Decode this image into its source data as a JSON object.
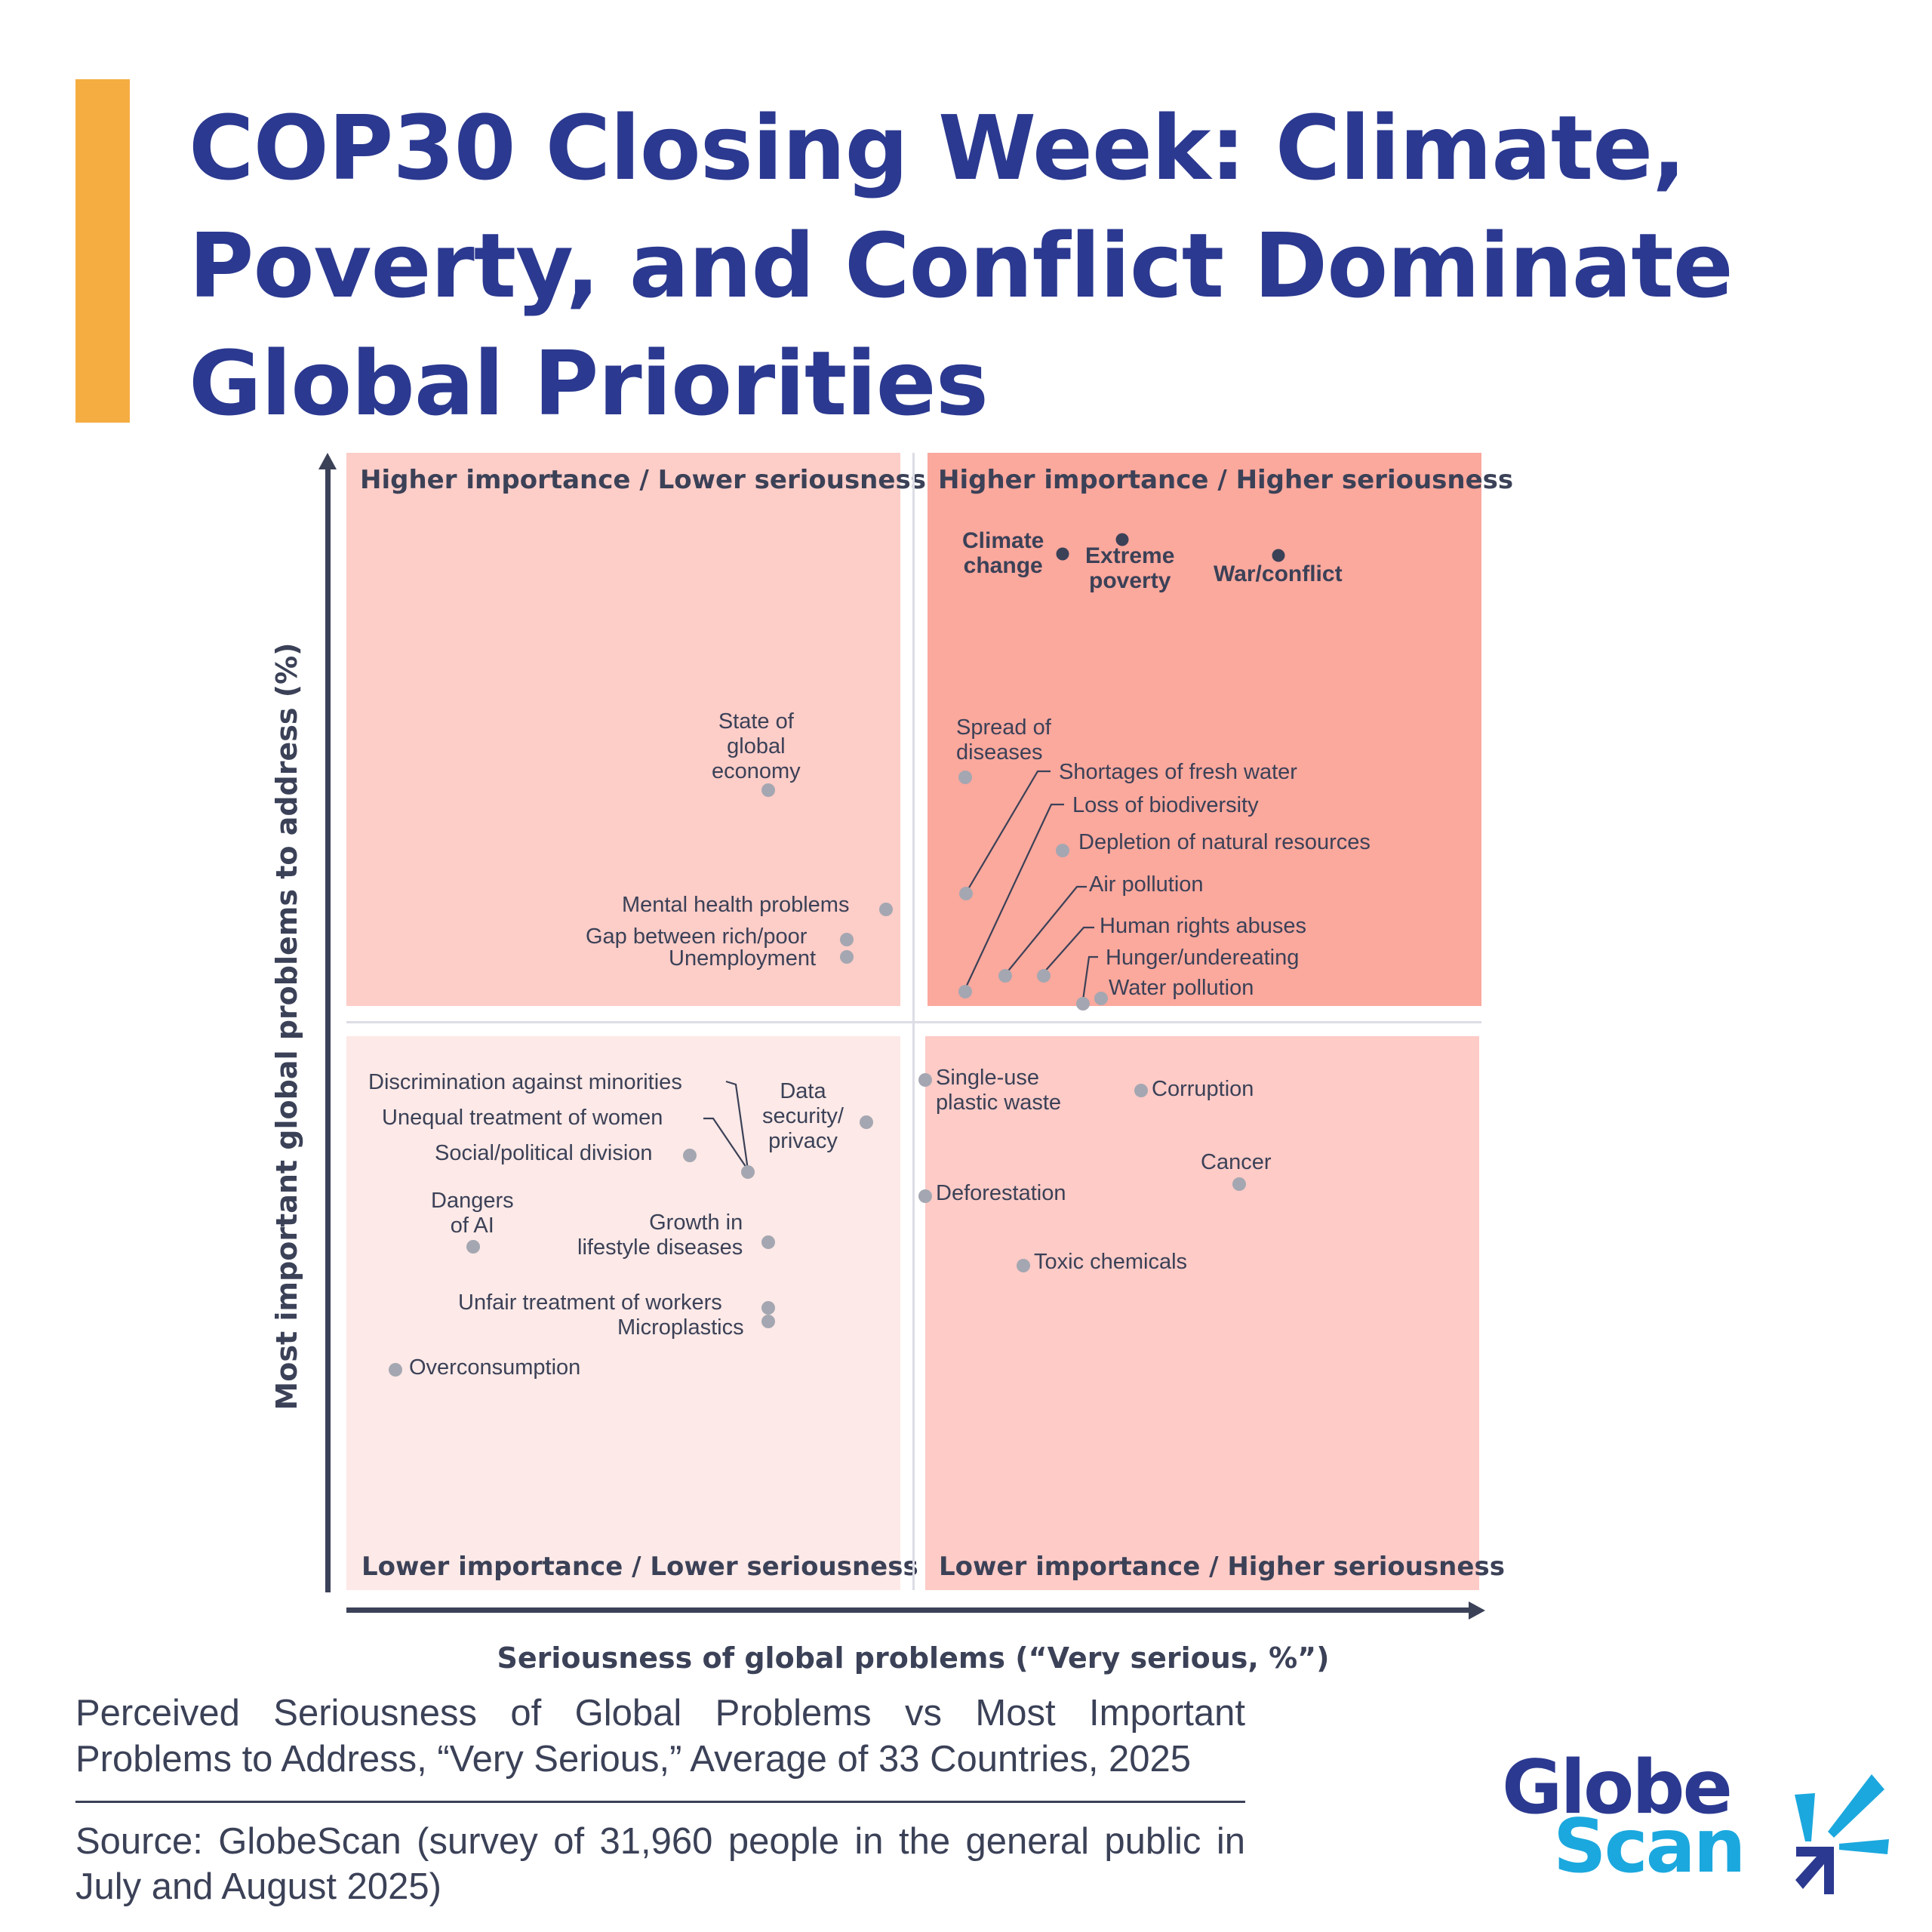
{
  "header": {
    "title_lines": [
      "COP30 Closing Week: Climate,",
      "Poverty, and Conflict Dominate",
      "Global Priorities"
    ],
    "accent_color": "#f5ad42",
    "title_color": "#2b3990"
  },
  "quadrants": {
    "top_left": "Higher importance / Lower seriousness",
    "top_right": "Higher importance / Higher seriousness",
    "bottom_left": "Lower importance / Lower seriousness",
    "bottom_right": "Lower importance / Higher seriousness"
  },
  "axes": {
    "x_label": "Seriousness of global problems (“Very serious, %”)",
    "y_label": "Most important global problems to address (%)"
  },
  "points": {
    "climate_change": "Climate\nchange",
    "extreme_poverty": "Extreme\npoverty",
    "war_conflict": "War/conflict",
    "spread_of_diseases": "Spread of\ndiseases",
    "shortages_fresh_water": "Shortages of fresh water",
    "loss_biodiversity": "Loss of biodiversity",
    "depletion_resources": "Depletion of natural resources",
    "air_pollution": "Air pollution",
    "human_rights": "Human rights abuses",
    "hunger": "Hunger/undereating",
    "water_pollution": "Water pollution",
    "state_global_economy": "State of\nglobal\neconomy",
    "mental_health": "Mental health problems",
    "gap_rich_poor": "Gap between rich/poor",
    "unemployment": "Unemployment",
    "discrimination": "Discrimination against minorities",
    "unequal_women": "Unequal treatment of women",
    "social_division": "Social/political division",
    "data_security": "Data\nsecurity/\nprivacy",
    "dangers_ai": "Dangers\nof AI",
    "lifestyle_diseases": "Growth in\nlifestyle diseases",
    "unfair_workers": "Unfair treatment of workers",
    "microplastics": "Microplastics",
    "overconsumption": "Overconsumption",
    "single_use_plastic": "Single-use\nplastic waste",
    "corruption": "Corruption",
    "cancer": "Cancer",
    "deforestation": "Deforestation",
    "toxic_chemicals": "Toxic chemicals"
  },
  "footer": {
    "caption": "Perceived Seriousness of Global Problems vs Most Important Problems to Address, “Very Serious,”  Average of 33 Countries, 2025",
    "source": "Source: GlobeScan (survey of 31,960 people in the general public in July and August 2025)",
    "logo_line1": "Globe",
    "logo_line2": "Scan",
    "logo_colors": {
      "dark": "#2b3990",
      "light": "#1ba8de"
    }
  },
  "chart_data": {
    "type": "scatter",
    "title": "COP30 Closing Week: Climate, Poverty, and Conflict Dominate Global Priorities",
    "subtitle": "Perceived Seriousness of Global Problems vs Most Important Problems to Address, “Very Serious,” Average of 33 Countries, 2025",
    "xlabel": "Seriousness of global problems (“Very serious, %”)",
    "ylabel": "Most important global problems to address (%)",
    "axis_ticks": "none (relative positions only)",
    "grid": false,
    "quadrant_labels": [
      "Higher importance / Lower seriousness",
      "Higher importance / Higher seriousness",
      "Lower importance / Lower seriousness",
      "Lower importance / Higher seriousness"
    ],
    "note": "Values are relative plot positions (0-100 scale, x=seriousness, y=importance), estimated from pixel positions; quadrant midpoint = 50.",
    "points": [
      {
        "label": "Climate change",
        "x": 59,
        "y": 94,
        "highlight": true
      },
      {
        "label": "Extreme poverty",
        "x": 62,
        "y": 95,
        "highlight": true
      },
      {
        "label": "War/conflict",
        "x": 70,
        "y": 94,
        "highlight": true
      },
      {
        "label": "Spread of diseases",
        "x": 53,
        "y": 76
      },
      {
        "label": "Shortages of fresh water",
        "x": 53,
        "y": 69
      },
      {
        "label": "Loss of biodiversity",
        "x": 53,
        "y": 62
      },
      {
        "label": "Depletion of natural resources",
        "x": 58,
        "y": 72
      },
      {
        "label": "Air pollution",
        "x": 55,
        "y": 63
      },
      {
        "label": "Human rights abuses",
        "x": 57,
        "y": 63
      },
      {
        "label": "Hunger/undereating",
        "x": 59,
        "y": 61
      },
      {
        "label": "Water pollution",
        "x": 60,
        "y": 62
      },
      {
        "label": "State of global economy",
        "x": 38,
        "y": 75
      },
      {
        "label": "Mental health problems",
        "x": 48,
        "y": 68
      },
      {
        "label": "Gap between rich/poor",
        "x": 46,
        "y": 66
      },
      {
        "label": "Unemployment",
        "x": 46,
        "y": 65
      },
      {
        "label": "Discrimination against minorities",
        "x": 36,
        "y": 46
      },
      {
        "label": "Unequal treatment of women",
        "x": 36,
        "y": 46
      },
      {
        "label": "Social/political division",
        "x": 31,
        "y": 47
      },
      {
        "label": "Data security/privacy",
        "x": 46,
        "y": 49
      },
      {
        "label": "Dangers of AI",
        "x": 12,
        "y": 38
      },
      {
        "label": "Growth in lifestyle diseases",
        "x": 38,
        "y": 38
      },
      {
        "label": "Unfair treatment of workers",
        "x": 38,
        "y": 34
      },
      {
        "label": "Microplastics",
        "x": 38,
        "y": 33
      },
      {
        "label": "Overconsumption",
        "x": 4,
        "y": 30
      },
      {
        "label": "Single-use plastic waste",
        "x": 51,
        "y": 50
      },
      {
        "label": "Corruption",
        "x": 63,
        "y": 50
      },
      {
        "label": "Cancer",
        "x": 79,
        "y": 44
      },
      {
        "label": "Deforestation",
        "x": 51,
        "y": 43
      },
      {
        "label": "Toxic chemicals",
        "x": 55,
        "y": 39
      }
    ]
  }
}
